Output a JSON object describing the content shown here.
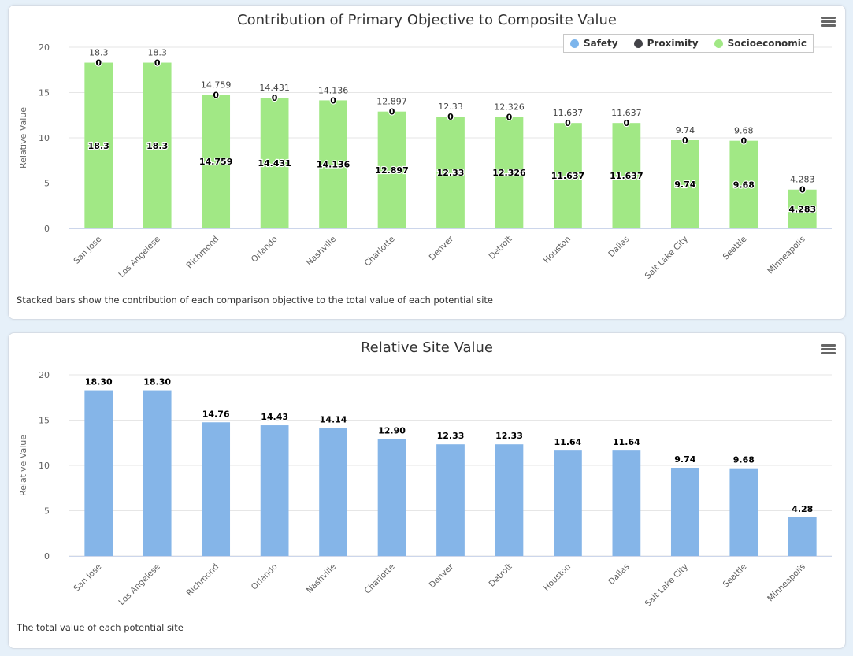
{
  "chart_data": [
    {
      "type": "bar",
      "stacked": true,
      "title": "Contribution of Primary Objective to Composite Value",
      "ylabel": "Relative Value",
      "ylim": [
        0,
        20
      ],
      "yticks": [
        0,
        5,
        10,
        15,
        20
      ],
      "categories": [
        "San Jose",
        "Los Angelese",
        "Richmond",
        "Orlando",
        "Nashville",
        "Charlotte",
        "Denver",
        "Detroit",
        "Houston",
        "Dallas",
        "Salt Lake City",
        "Seattle",
        "Minneapolis"
      ],
      "series": [
        {
          "name": "Safety",
          "color": "#7cb5ec",
          "values": [
            0,
            0,
            0,
            0,
            0,
            0,
            0,
            0,
            0,
            0,
            0,
            0,
            0
          ]
        },
        {
          "name": "Proximity",
          "color": "#434348",
          "values": [
            0,
            0,
            0,
            0,
            0,
            0,
            0,
            0,
            0,
            0,
            0,
            0,
            0
          ]
        },
        {
          "name": "Socioeconomic",
          "color": "#a1e885",
          "values": [
            18.3,
            18.3,
            14.759,
            14.431,
            14.136,
            12.897,
            12.33,
            12.326,
            11.637,
            11.637,
            9.74,
            9.68,
            4.283
          ]
        }
      ],
      "totals": [
        "18.3",
        "18.3",
        "14.759",
        "14.431",
        "14.136",
        "12.897",
        "12.33",
        "12.326",
        "11.637",
        "11.637",
        "9.74",
        "9.68",
        "4.283"
      ],
      "legend_position": "top-right",
      "grid": true,
      "caption": "Stacked bars show the contribution of each comparison objective to the total value of each potential site"
    },
    {
      "type": "bar",
      "title": "Relative Site Value",
      "ylabel": "Relative Value",
      "ylim": [
        0,
        20
      ],
      "yticks": [
        0,
        5,
        10,
        15,
        20
      ],
      "categories": [
        "San Jose",
        "Los Angelese",
        "Richmond",
        "Orlando",
        "Nashville",
        "Charlotte",
        "Denver",
        "Detroit",
        "Houston",
        "Dallas",
        "Salt Lake City",
        "Seattle",
        "Minneapolis"
      ],
      "series": [
        {
          "color": "#85b5e8",
          "values": [
            18.3,
            18.3,
            14.76,
            14.43,
            14.14,
            12.9,
            12.33,
            12.33,
            11.64,
            11.64,
            9.74,
            9.68,
            4.28
          ]
        }
      ],
      "data_labels": [
        "18.30",
        "18.30",
        "14.76",
        "14.43",
        "14.14",
        "12.90",
        "12.33",
        "12.33",
        "11.64",
        "11.64",
        "9.74",
        "9.68",
        "4.28"
      ],
      "grid": true,
      "caption": "The total value of each potential site"
    }
  ]
}
